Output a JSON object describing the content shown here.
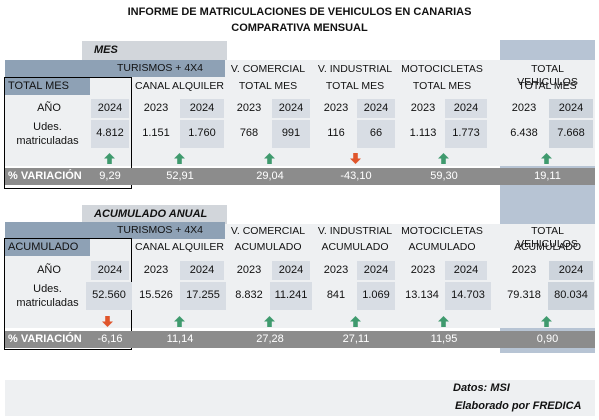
{
  "title_line1": "INFORME DE MATRICULACIONES DE VEHICULOS EN CANARIAS",
  "title_line2": "COMPARATIVA MENSUAL",
  "colors": {
    "up": "#3f9a6e",
    "down": "#e0552b"
  },
  "mes": {
    "section_title": "MES",
    "turismos": "TURISMOS + 4X4",
    "total_label": "TOTAL MES",
    "canal_alquiler": "CANAL ALQUILER",
    "vcom_line1": "V. COMERCIAL",
    "vcom_line2": "TOTAL MES",
    "vind_line1": "V. INDUSTRIAL",
    "vind_line2": "TOTAL MES",
    "moto_line1": "MOTOCICLETAS",
    "moto_line2": "TOTAL MES",
    "tot_line1": "TOTAL VEHICULOS",
    "tot_line2": "TOTAL MES",
    "ano_label": "AÑO",
    "udes_line1": "Udes.",
    "udes_line2": "matriculadas",
    "variacion_label": "% VARIACIÓN",
    "years": {
      "total": "2024",
      "canal_a": "2023",
      "canal_b": "2024",
      "vcom_a": "2023",
      "vcom_b": "2024",
      "vind_a": "2023",
      "vind_b": "2024",
      "moto_a": "2023",
      "moto_b": "2024",
      "tot_a": "2023",
      "tot_b": "2024"
    },
    "values": {
      "total": "4.812",
      "canal_a": "1.151",
      "canal_b": "1.760",
      "vcom_a": "768",
      "vcom_b": "991",
      "vind_a": "116",
      "vind_b": "66",
      "moto_a": "1.113",
      "moto_b": "1.773",
      "tot_a": "6.438",
      "tot_b": "7.668"
    },
    "variation": {
      "total": "9,29",
      "canal": "52,91",
      "vcom": "29,04",
      "vind": "-43,10",
      "moto": "59,30",
      "tot": "19,11"
    }
  },
  "acumulado": {
    "section_title": "ACUMULADO ANUAL",
    "turismos": "TURISMOS + 4X4",
    "total_label": "ACUMULADO",
    "canal_alquiler": "CANAL ALQUILER",
    "vcom_line1": "V. COMERCIAL",
    "vcom_line2": "ACUMULADO",
    "vind_line1": "V. INDUSTRIAL",
    "vind_line2": "ACUMULADO",
    "moto_line1": "MOTOCICLETAS",
    "moto_line2": "ACUMULADO",
    "tot_line1": "TOTAL VEHICULOS",
    "tot_line2": "ACUMULADO",
    "ano_label": "AÑO",
    "udes_line1": "Udes.",
    "udes_line2": "matriculadas",
    "variacion_label": "% VARIACIÓN",
    "years": {
      "total": "2024",
      "canal_a": "2023",
      "canal_b": "2024",
      "vcom_a": "2023",
      "vcom_b": "2024",
      "vind_a": "2023",
      "vind_b": "2024",
      "moto_a": "2023",
      "moto_b": "2024",
      "tot_a": "2023",
      "tot_b": "2024"
    },
    "values": {
      "total": "52.560",
      "canal_a": "15.526",
      "canal_b": "17.255",
      "vcom_a": "8.832",
      "vcom_b": "11.241",
      "vind_a": "841",
      "vind_b": "1.069",
      "moto_a": "13.134",
      "moto_b": "14.703",
      "tot_a": "79.318",
      "tot_b": "80.034"
    },
    "variation": {
      "total": "-6,16",
      "canal": "11,14",
      "vcom": "27,28",
      "vind": "27,11",
      "moto": "11,95",
      "tot": "0,90"
    }
  },
  "footer": {
    "datos": "Datos: MSI",
    "elaborado": "Elaborado por  FREDICA"
  }
}
